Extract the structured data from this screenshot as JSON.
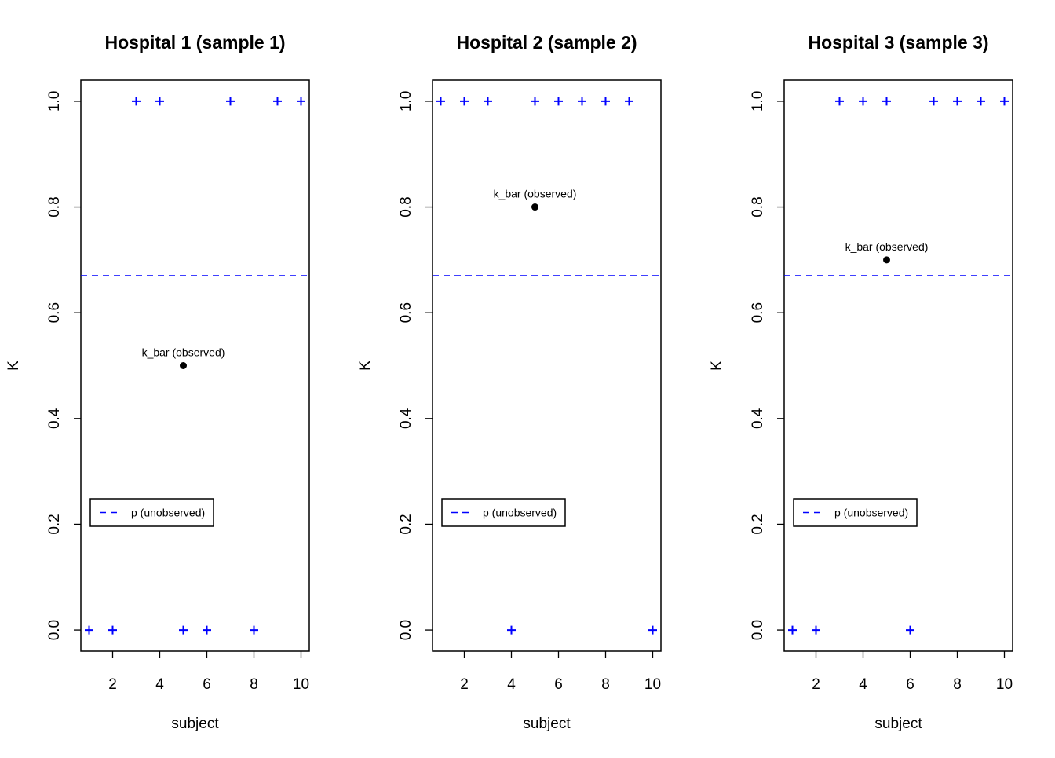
{
  "chart_data": [
    {
      "type": "scatter",
      "title": "Hospital 1 (sample 1)",
      "xlabel": "subject",
      "ylabel": "K",
      "xlim": [
        0.65,
        10.35
      ],
      "ylim": [
        -0.04,
        1.04
      ],
      "xticks": [
        2,
        4,
        6,
        8,
        10
      ],
      "xtick_labels": [
        "2",
        "4",
        "6",
        "8",
        "10"
      ],
      "yticks": [
        0,
        0.2,
        0.4,
        0.6,
        0.8,
        1
      ],
      "ytick_labels": [
        "0.0",
        "0.2",
        "0.4",
        "0.6",
        "0.8",
        "1.0"
      ],
      "series": [
        {
          "marker": "plus",
          "color": "#0000ff",
          "x": [
            1,
            2,
            3,
            4,
            5,
            6,
            7,
            8,
            9,
            10
          ],
          "y": [
            0,
            0,
            1,
            1,
            0,
            0,
            1,
            0,
            1,
            1
          ]
        }
      ],
      "k_bar": {
        "x": 5,
        "y": 0.5,
        "label": "k_bar (observed)"
      },
      "p_line": {
        "y": 0.67,
        "color": "#0000ff",
        "style": "dashed",
        "label": "p (unobserved)"
      },
      "legend_placement": "bottom-left"
    },
    {
      "type": "scatter",
      "title": "Hospital 2 (sample 2)",
      "xlabel": "subject",
      "ylabel": "K",
      "xlim": [
        0.65,
        10.35
      ],
      "ylim": [
        -0.04,
        1.04
      ],
      "xticks": [
        2,
        4,
        6,
        8,
        10
      ],
      "xtick_labels": [
        "2",
        "4",
        "6",
        "8",
        "10"
      ],
      "yticks": [
        0,
        0.2,
        0.4,
        0.6,
        0.8,
        1
      ],
      "ytick_labels": [
        "0.0",
        "0.2",
        "0.4",
        "0.6",
        "0.8",
        "1.0"
      ],
      "series": [
        {
          "marker": "plus",
          "color": "#0000ff",
          "x": [
            1,
            2,
            3,
            4,
            5,
            6,
            7,
            8,
            9,
            10
          ],
          "y": [
            1,
            1,
            1,
            0,
            1,
            1,
            1,
            1,
            1,
            0
          ]
        }
      ],
      "k_bar": {
        "x": 5,
        "y": 0.8,
        "label": "k_bar (observed)"
      },
      "p_line": {
        "y": 0.67,
        "color": "#0000ff",
        "style": "dashed",
        "label": "p (unobserved)"
      },
      "legend_placement": "bottom-left"
    },
    {
      "type": "scatter",
      "title": "Hospital 3 (sample 3)",
      "xlabel": "subject",
      "ylabel": "K",
      "xlim": [
        0.65,
        10.35
      ],
      "ylim": [
        -0.04,
        1.04
      ],
      "xticks": [
        2,
        4,
        6,
        8,
        10
      ],
      "xtick_labels": [
        "2",
        "4",
        "6",
        "8",
        "10"
      ],
      "yticks": [
        0,
        0.2,
        0.4,
        0.6,
        0.8,
        1
      ],
      "ytick_labels": [
        "0.0",
        "0.2",
        "0.4",
        "0.6",
        "0.8",
        "1.0"
      ],
      "series": [
        {
          "marker": "plus",
          "color": "#0000ff",
          "x": [
            1,
            2,
            3,
            4,
            5,
            6,
            7,
            8,
            9,
            10
          ],
          "y": [
            0,
            0,
            1,
            1,
            1,
            0,
            1,
            1,
            1,
            1
          ]
        }
      ],
      "k_bar": {
        "x": 5,
        "y": 0.7,
        "label": "k_bar (observed)"
      },
      "p_line": {
        "y": 0.67,
        "color": "#0000ff",
        "style": "dashed",
        "label": "p (unobserved)"
      },
      "legend_placement": "bottom-left"
    }
  ]
}
